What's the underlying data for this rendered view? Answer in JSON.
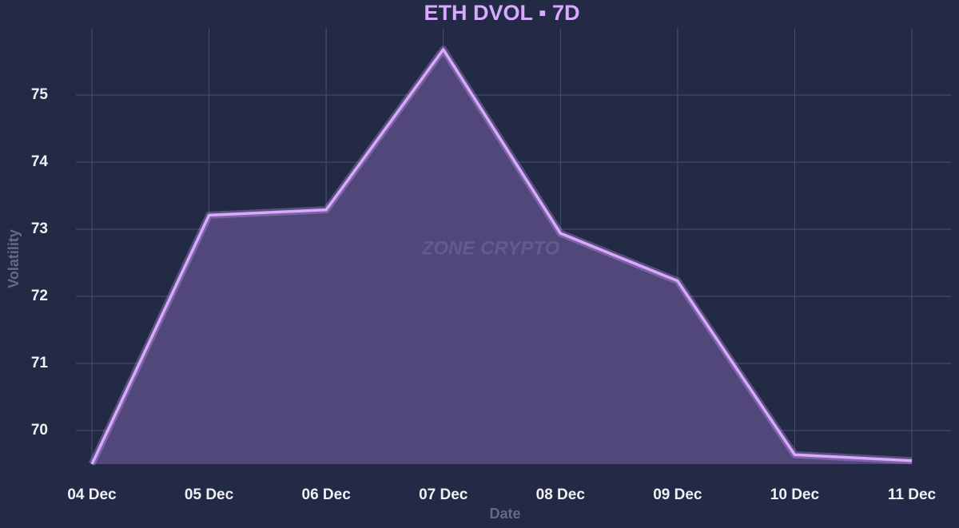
{
  "chart_data": {
    "type": "area",
    "title": "ETH DVOL ▪ 7D",
    "xlabel": "Date",
    "ylabel": "Volatility",
    "watermark": "ZONE CRYPTO",
    "categories": [
      "04 Dec",
      "05 Dec",
      "06 Dec",
      "07 Dec",
      "08 Dec",
      "09 Dec",
      "10 Dec",
      "11 Dec"
    ],
    "values": [
      69.5,
      73.21,
      73.29,
      75.68,
      72.94,
      72.23,
      69.64,
      69.55
    ],
    "color": "#d9a8ff",
    "fill": "#574a7f",
    "ylim": [
      69.5,
      76
    ],
    "yticks": [
      70,
      71,
      72,
      73,
      74,
      75
    ],
    "grid": true
  }
}
